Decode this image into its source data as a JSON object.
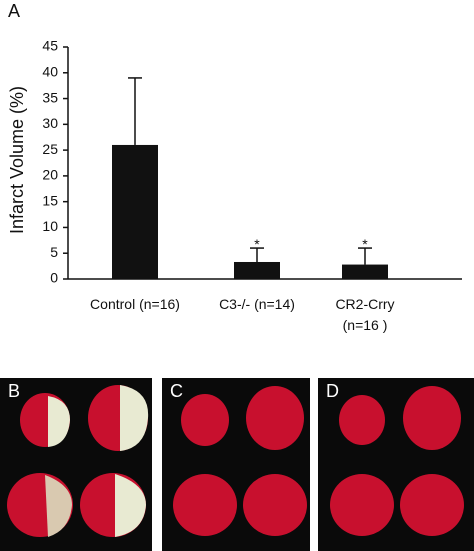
{
  "chart_data": {
    "type": "bar",
    "panel_label": "A",
    "y_label": "Infarct Volume (%)",
    "categories": [
      "Control (n=16)",
      "C3-/- (n=14)",
      "CR2-Crry\n(n=16 )"
    ],
    "values": [
      26,
      3.3,
      2.8
    ],
    "errors": [
      13,
      2.7,
      3.2
    ],
    "significance": [
      null,
      "*",
      "*"
    ],
    "color": "#111111",
    "ylim": [
      0,
      45
    ],
    "yticks": [
      0,
      5,
      10,
      15,
      20,
      25,
      30,
      35,
      40,
      45
    ],
    "grid": false
  },
  "image_panels": [
    "B",
    "C",
    "D"
  ]
}
